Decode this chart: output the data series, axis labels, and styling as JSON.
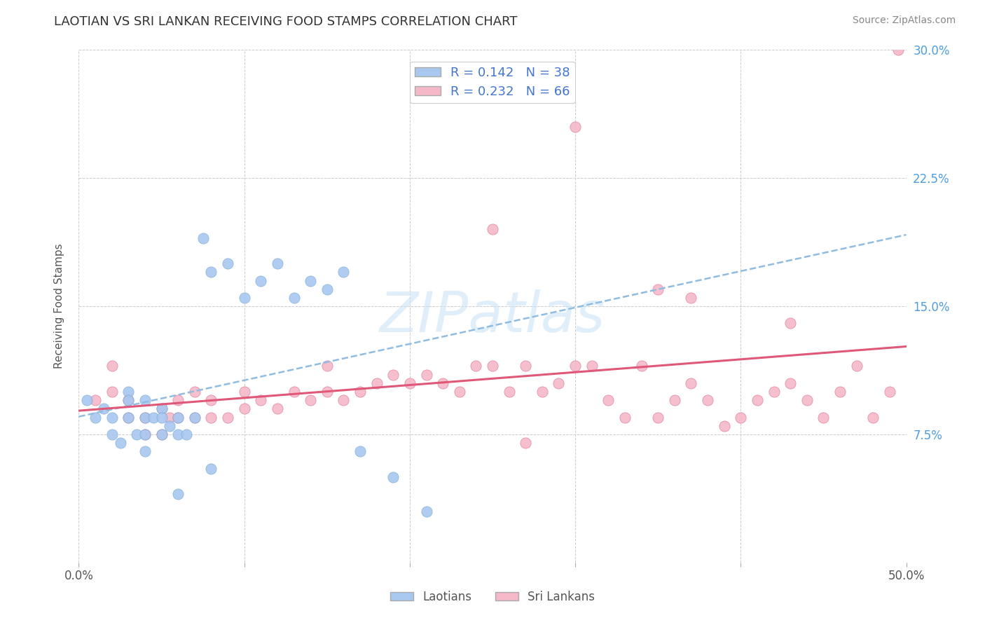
{
  "title": "LAOTIAN VS SRI LANKAN RECEIVING FOOD STAMPS CORRELATION CHART",
  "source": "Source: ZipAtlas.com",
  "ylabel": "Receiving Food Stamps",
  "xlim": [
    0.0,
    0.5
  ],
  "ylim": [
    0.0,
    0.3
  ],
  "xtick_positions": [
    0.0,
    0.1,
    0.2,
    0.3,
    0.4,
    0.5
  ],
  "xtick_labels_ends": {
    "0.0": "0.0%",
    "0.50": "50.0%"
  },
  "ytick_positions": [
    0.0,
    0.075,
    0.15,
    0.225,
    0.3
  ],
  "ytick_labels_right": [
    "",
    "7.5%",
    "15.0%",
    "22.5%",
    "30.0%"
  ],
  "laotian_color": "#a8c8f0",
  "laotian_edge_color": "#7aaad8",
  "sri_lankan_color": "#f5b8c8",
  "sri_lankan_edge_color": "#e07898",
  "trendline_color_laotian": "#90bce0",
  "trendline_color_sri_lankan": "#e05878",
  "R_laotian": 0.142,
  "N_laotian": 38,
  "R_sri_lankan": 0.232,
  "N_sri_lankan": 66,
  "watermark": "ZIPatlas",
  "background_color": "#ffffff",
  "grid_color": "#cccccc",
  "laotian_x": [
    0.005,
    0.01,
    0.015,
    0.02,
    0.02,
    0.025,
    0.03,
    0.03,
    0.03,
    0.035,
    0.04,
    0.04,
    0.04,
    0.04,
    0.045,
    0.05,
    0.05,
    0.05,
    0.055,
    0.06,
    0.06,
    0.065,
    0.07,
    0.075,
    0.08,
    0.09,
    0.1,
    0.11,
    0.12,
    0.13,
    0.14,
    0.15,
    0.16,
    0.17,
    0.19,
    0.21,
    0.08,
    0.06
  ],
  "laotian_y": [
    0.095,
    0.085,
    0.09,
    0.075,
    0.085,
    0.07,
    0.1,
    0.095,
    0.085,
    0.075,
    0.095,
    0.085,
    0.075,
    0.065,
    0.085,
    0.09,
    0.085,
    0.075,
    0.08,
    0.085,
    0.075,
    0.075,
    0.085,
    0.19,
    0.17,
    0.175,
    0.155,
    0.165,
    0.175,
    0.155,
    0.165,
    0.16,
    0.17,
    0.065,
    0.05,
    0.03,
    0.055,
    0.04
  ],
  "sri_lankan_x": [
    0.01,
    0.02,
    0.03,
    0.03,
    0.04,
    0.05,
    0.055,
    0.06,
    0.07,
    0.07,
    0.08,
    0.08,
    0.09,
    0.1,
    0.1,
    0.11,
    0.12,
    0.13,
    0.14,
    0.15,
    0.15,
    0.16,
    0.17,
    0.18,
    0.19,
    0.2,
    0.21,
    0.22,
    0.23,
    0.24,
    0.25,
    0.26,
    0.27,
    0.28,
    0.29,
    0.3,
    0.31,
    0.32,
    0.33,
    0.34,
    0.35,
    0.36,
    0.37,
    0.38,
    0.39,
    0.4,
    0.41,
    0.42,
    0.43,
    0.44,
    0.45,
    0.46,
    0.47,
    0.48,
    0.49,
    0.495,
    0.02,
    0.04,
    0.05,
    0.06,
    0.25,
    0.3,
    0.35,
    0.27,
    0.37,
    0.43
  ],
  "sri_lankan_y": [
    0.095,
    0.1,
    0.095,
    0.085,
    0.085,
    0.09,
    0.085,
    0.095,
    0.085,
    0.1,
    0.095,
    0.085,
    0.085,
    0.09,
    0.1,
    0.095,
    0.09,
    0.1,
    0.095,
    0.1,
    0.115,
    0.095,
    0.1,
    0.105,
    0.11,
    0.105,
    0.11,
    0.105,
    0.1,
    0.115,
    0.115,
    0.1,
    0.115,
    0.1,
    0.105,
    0.115,
    0.115,
    0.095,
    0.085,
    0.115,
    0.085,
    0.095,
    0.105,
    0.095,
    0.08,
    0.085,
    0.095,
    0.1,
    0.105,
    0.095,
    0.085,
    0.1,
    0.115,
    0.085,
    0.1,
    0.3,
    0.115,
    0.075,
    0.075,
    0.085,
    0.195,
    0.255,
    0.16,
    0.07,
    0.155,
    0.14
  ]
}
